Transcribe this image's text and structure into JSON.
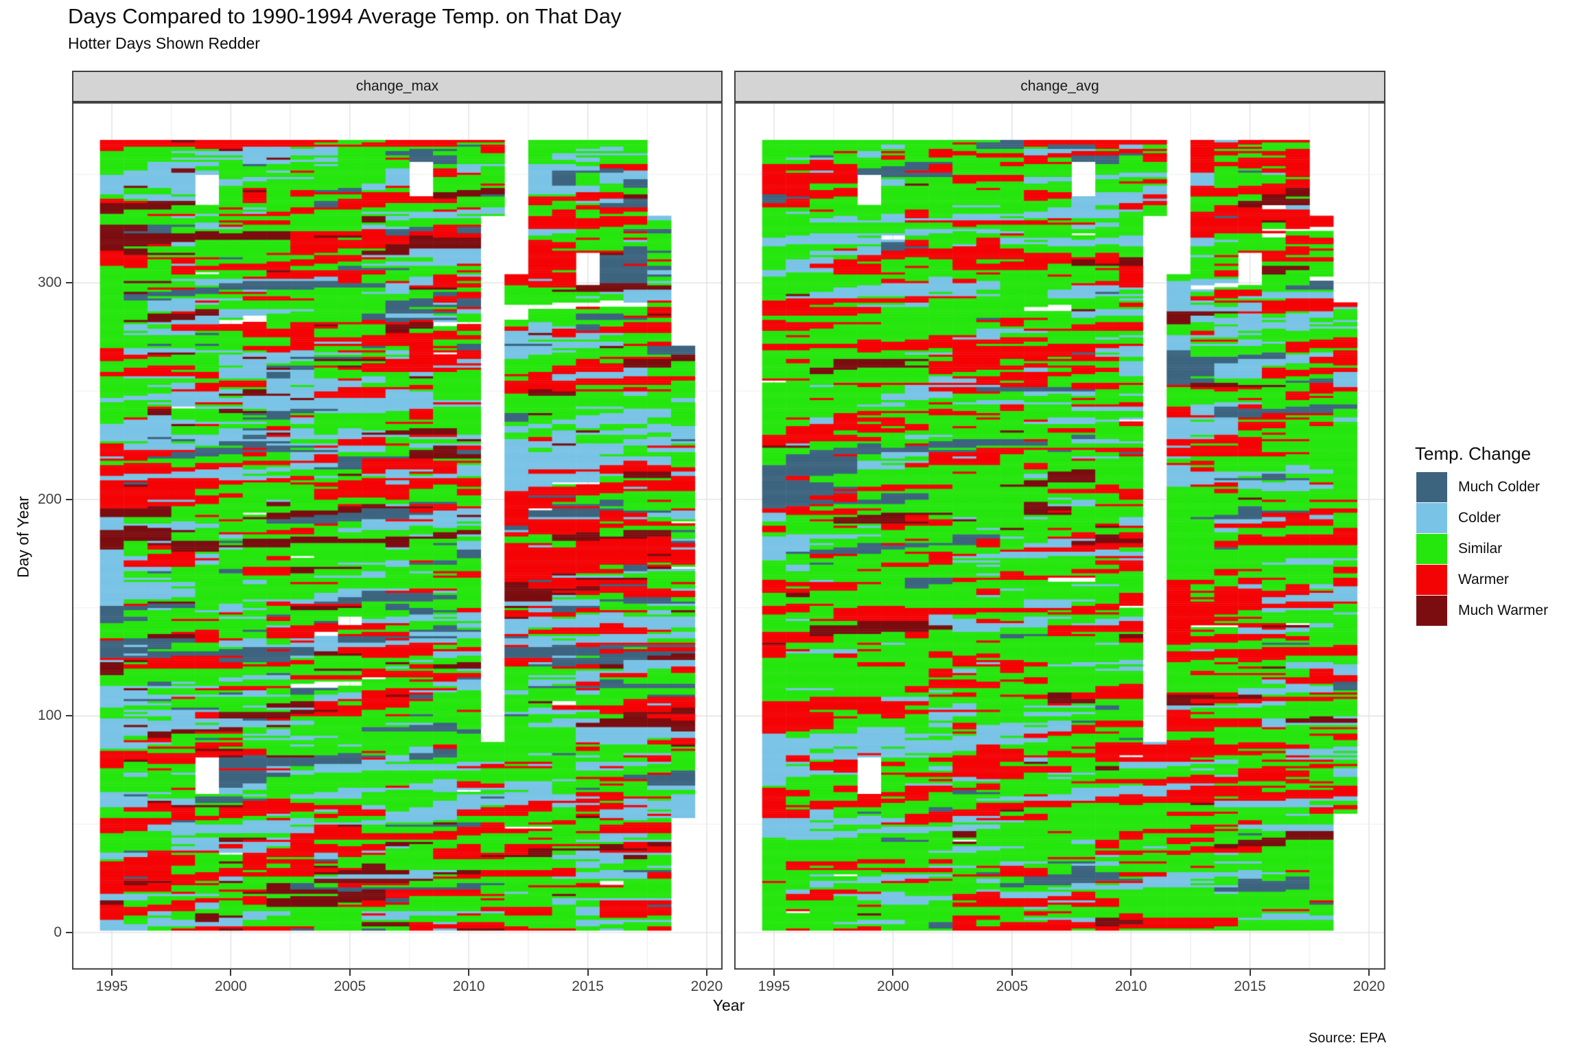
{
  "header": {
    "title": "Days Compared to 1990-1994 Average Temp. on That Day",
    "subtitle": "Hotter Days Shown Redder"
  },
  "caption": {
    "source": "Source: EPA"
  },
  "chart_data": {
    "type": "heatmap",
    "title": "Days Compared to 1990-1994 Average Temp. on That Day",
    "subtitle": "Hotter Days Shown Redder",
    "facets": [
      "change_max",
      "change_avg"
    ],
    "x_axis": {
      "label": "Year",
      "ticks": [
        1995,
        2000,
        2005,
        2010,
        2015,
        2020
      ],
      "range": [
        1994.5,
        2020.7
      ],
      "minor_gridlines": true
    },
    "y_axis": {
      "label": "Day of Year",
      "ticks": [
        0,
        100,
        200,
        300
      ],
      "minor_ticks": [
        50,
        150,
        250,
        350
      ],
      "range": [
        -17,
        383
      ]
    },
    "legend": {
      "title": "Temp. Change",
      "position": "right",
      "entries": [
        {
          "label": "Much Colder",
          "category": "much_colder",
          "color": "#3D647F"
        },
        {
          "label": "Colder",
          "category": "colder",
          "color": "#79C3E6"
        },
        {
          "label": "Similar",
          "category": "similar",
          "color": "#25E60D"
        },
        {
          "label": "Warmer",
          "category": "warmer",
          "color": "#F40305"
        },
        {
          "label": "Much Warmer",
          "category": "much_warmer",
          "color": "#7B0D10"
        }
      ]
    },
    "years": {
      "start": 1995,
      "end": 2019
    },
    "days": {
      "start": 1,
      "end": 365
    },
    "facet_year_day_limits": {
      "change_max": {
        "2019": [
          53,
          270
        ]
      },
      "change_avg": {
        "2019": [
          55,
          290
        ]
      }
    },
    "missing_days": [
      {
        "year": 1999,
        "days": [
          336,
          349
        ]
      },
      {
        "year": 1999,
        "days": [
          64,
          80
        ]
      },
      {
        "year": 2008,
        "days": [
          340,
          355
        ]
      },
      {
        "year": 2011,
        "days": [
          88,
          330
        ]
      },
      {
        "year": 2012,
        "days": [
          304,
          365
        ]
      },
      {
        "year": 2015,
        "days": [
          299,
          313
        ]
      },
      {
        "year": 2018,
        "days": [
          331,
          365
        ]
      }
    ],
    "notable_features": [
      {
        "facets": "both",
        "years": [
          2008,
          2009
        ],
        "days": [
          355,
          358
        ],
        "category": "much_colder"
      }
    ],
    "category_distribution": {
      "change_max": {
        "similar": 0.405,
        "warmer": 0.235,
        "colder": 0.21,
        "much_colder": 0.07,
        "much_warmer": 0.068,
        "missing": 0.012
      },
      "change_avg": {
        "similar": 0.53,
        "warmer": 0.25,
        "colder": 0.155,
        "much_colder": 0.028,
        "much_warmer": 0.028,
        "missing": 0.009
      }
    },
    "texture": {
      "horizontal_run_persistence": 0.36,
      "vertical_run_persistence": 0.42,
      "seeds": {
        "change_max": 421,
        "change_avg": 1337
      }
    },
    "panel_style": {
      "strip_background": "#D4D4D4",
      "strip_border": "#404040",
      "panel_border": "#404040",
      "major_gridline": "#E4E4E4",
      "minor_gridline": "#F1F1F1",
      "tick_color": "#333333"
    }
  }
}
